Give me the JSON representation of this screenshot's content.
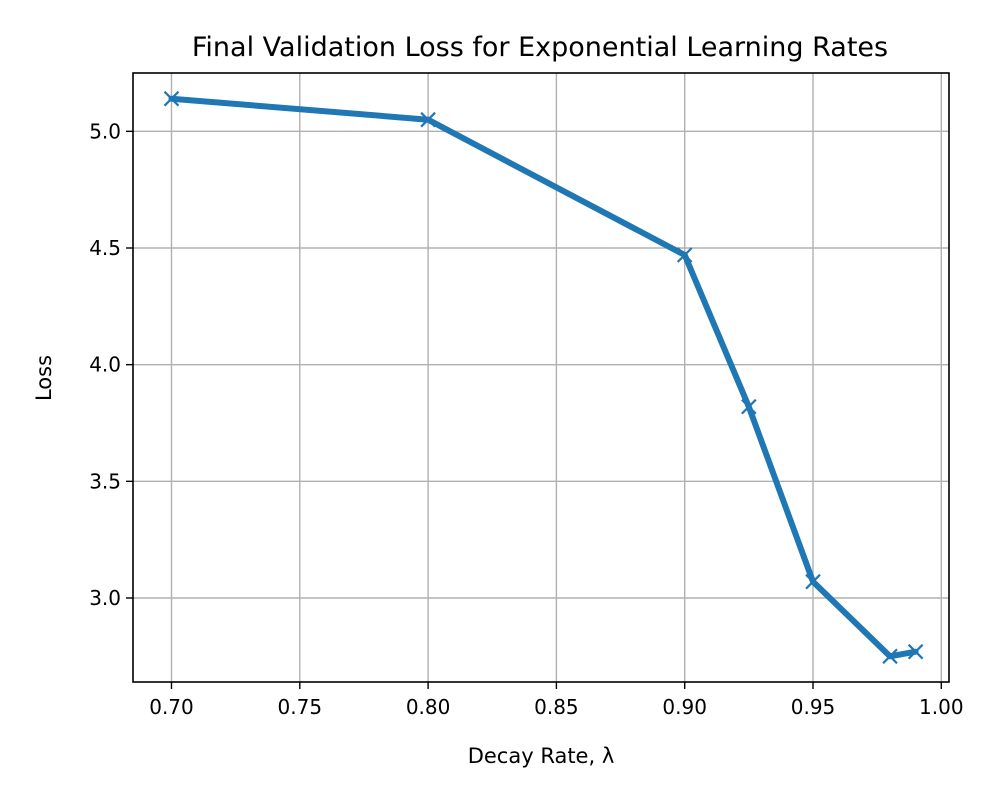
{
  "chart_data": {
    "type": "line",
    "title": "Final Validation Loss for Exponential Learning Rates",
    "xlabel": "Decay Rate, λ",
    "ylabel": "Loss",
    "xlim": [
      0.685,
      1.003
    ],
    "ylim": [
      2.64,
      5.25
    ],
    "xticks": [
      0.7,
      0.75,
      0.8,
      0.85,
      0.9,
      0.95,
      1.0
    ],
    "xtick_labels": [
      "0.70",
      "0.75",
      "0.80",
      "0.85",
      "0.90",
      "0.95",
      "1.00"
    ],
    "yticks": [
      3.0,
      3.5,
      4.0,
      4.5,
      5.0
    ],
    "ytick_labels": [
      "3.0",
      "3.5",
      "4.0",
      "4.5",
      "5.0"
    ],
    "grid": true,
    "legend": "none",
    "series": [
      {
        "color": "#1f77b4",
        "marker": "x",
        "x": [
          0.7,
          0.8,
          0.9,
          0.925,
          0.95,
          0.98,
          0.99
        ],
        "y": [
          5.14,
          5.05,
          4.47,
          3.82,
          3.07,
          2.75,
          2.77
        ]
      }
    ]
  }
}
